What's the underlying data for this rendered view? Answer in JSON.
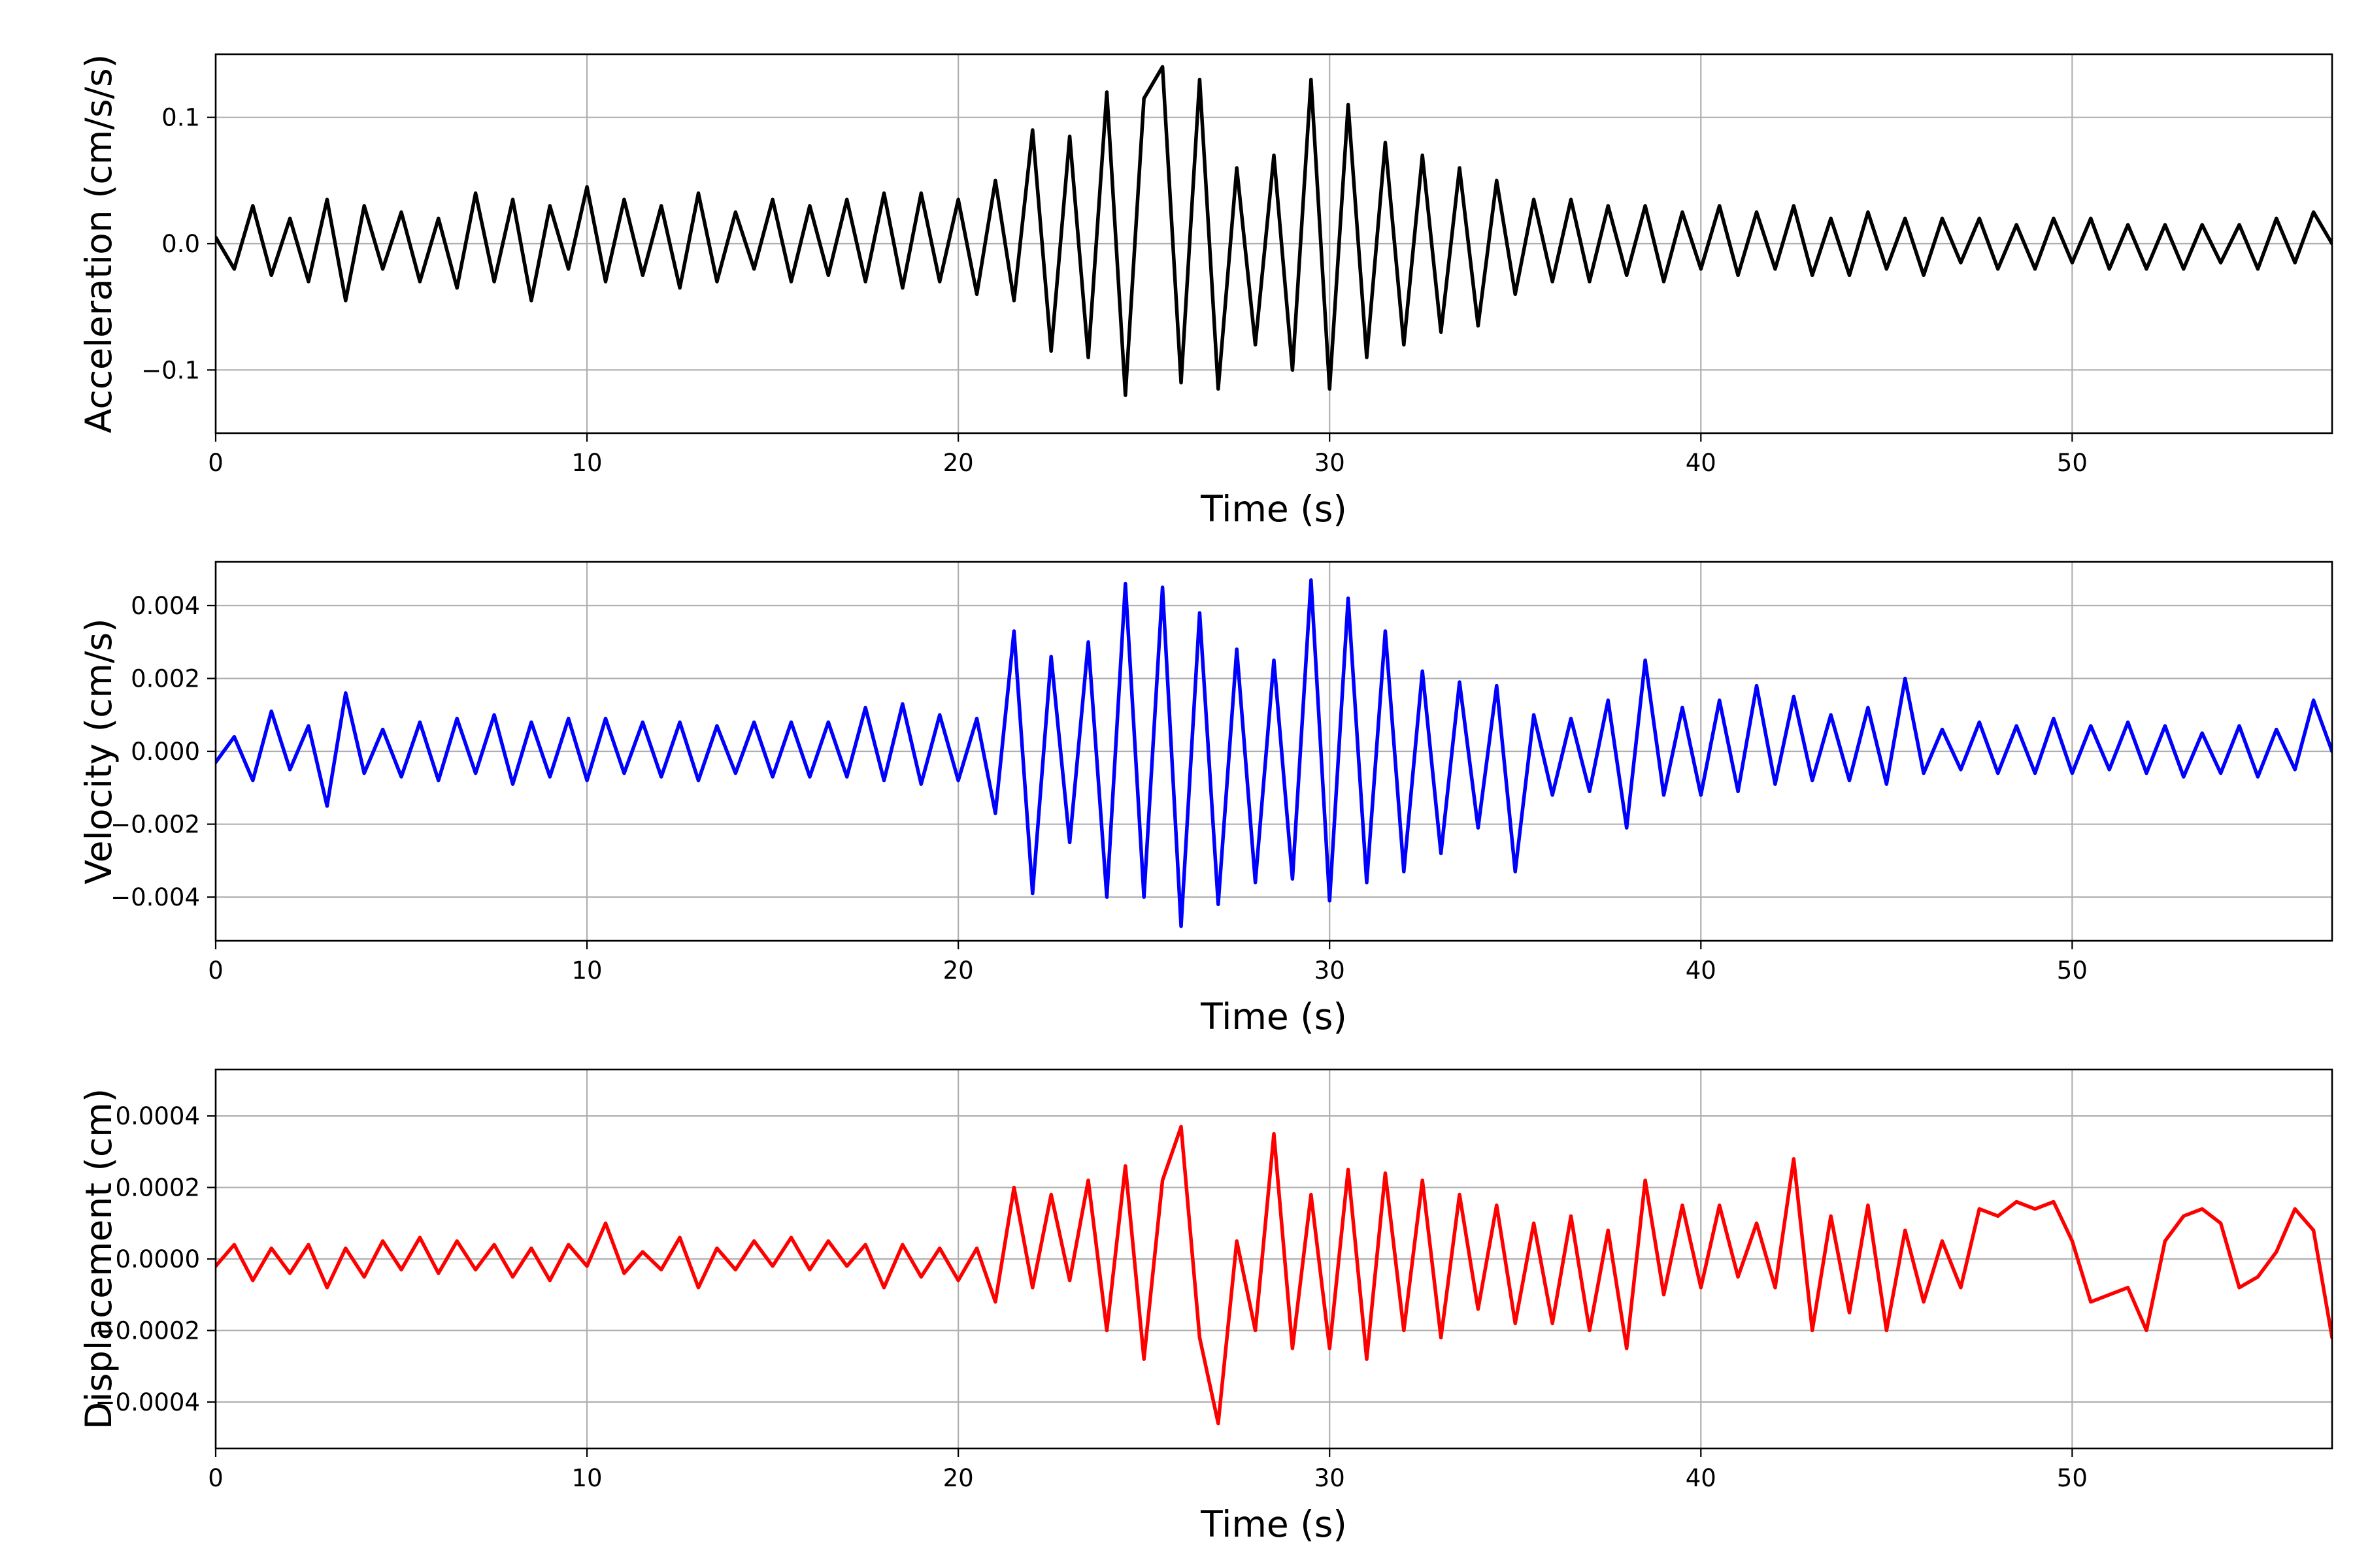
{
  "chart_data": [
    {
      "type": "line",
      "xlabel": "Time (s)",
      "ylabel": "Acceleration (cm/s/s)",
      "xlim": [
        0,
        57
      ],
      "ylim": [
        -0.15,
        0.15
      ],
      "xticks": [
        0,
        10,
        20,
        30,
        40,
        50
      ],
      "yticks": [
        -0.1,
        0.0,
        0.1
      ],
      "yticklabels": [
        "−0.1",
        "0.0",
        "0.1"
      ],
      "grid": true,
      "series": [
        {
          "color": "#000000",
          "x": [
            0,
            0.5,
            1,
            1.5,
            2,
            2.5,
            3,
            3.5,
            4,
            4.5,
            5,
            5.5,
            6,
            6.5,
            7,
            7.5,
            8,
            8.5,
            9,
            9.5,
            10,
            10.5,
            11,
            11.5,
            12,
            12.5,
            13,
            13.5,
            14,
            14.5,
            15,
            15.5,
            16,
            16.5,
            17,
            17.5,
            18,
            18.5,
            19,
            19.5,
            20,
            20.5,
            21,
            21.5,
            22,
            22.5,
            23,
            23.5,
            24,
            24.5,
            25,
            25.5,
            26,
            26.5,
            27,
            27.5,
            28,
            28.5,
            29,
            29.5,
            30,
            30.5,
            31,
            31.5,
            32,
            32.5,
            33,
            33.5,
            34,
            34.5,
            35,
            35.5,
            36,
            36.5,
            37,
            37.5,
            38,
            38.5,
            39,
            39.5,
            40,
            40.5,
            41,
            41.5,
            42,
            42.5,
            43,
            43.5,
            44,
            44.5,
            45,
            45.5,
            46,
            46.5,
            47,
            47.5,
            48,
            48.5,
            49,
            49.5,
            50,
            50.5,
            51,
            51.5,
            52,
            52.5,
            53,
            53.5,
            54,
            54.5,
            55,
            55.5,
            56,
            56.5,
            57
          ],
          "y": [
            0.005,
            -0.02,
            0.03,
            -0.025,
            0.02,
            -0.03,
            0.035,
            -0.045,
            0.03,
            -0.02,
            0.025,
            -0.03,
            0.02,
            -0.035,
            0.04,
            -0.03,
            0.035,
            -0.045,
            0.03,
            -0.02,
            0.045,
            -0.03,
            0.035,
            -0.025,
            0.03,
            -0.035,
            0.04,
            -0.03,
            0.025,
            -0.02,
            0.035,
            -0.03,
            0.03,
            -0.025,
            0.035,
            -0.03,
            0.04,
            -0.035,
            0.04,
            -0.03,
            0.035,
            -0.04,
            0.05,
            -0.045,
            0.09,
            -0.085,
            0.085,
            -0.09,
            0.12,
            -0.12,
            0.115,
            0.14,
            -0.11,
            0.13,
            -0.115,
            0.06,
            -0.08,
            0.07,
            -0.1,
            0.13,
            -0.115,
            0.11,
            -0.09,
            0.08,
            -0.08,
            0.07,
            -0.07,
            0.06,
            -0.065,
            0.05,
            -0.04,
            0.035,
            -0.03,
            0.035,
            -0.03,
            0.03,
            -0.025,
            0.03,
            -0.03,
            0.025,
            -0.02,
            0.03,
            -0.025,
            0.025,
            -0.02,
            0.03,
            -0.025,
            0.02,
            -0.025,
            0.025,
            -0.02,
            0.02,
            -0.025,
            0.02,
            -0.015,
            0.02,
            -0.02,
            0.015,
            -0.02,
            0.02,
            -0.015,
            0.02,
            -0.02,
            0.015,
            -0.02,
            0.015,
            -0.02,
            0.015,
            -0.015,
            0.015,
            -0.02,
            0.02,
            -0.015,
            0.025,
            0.0
          ]
        }
      ]
    },
    {
      "type": "line",
      "xlabel": "Time (s)",
      "ylabel": "Velocity (cm/s)",
      "xlim": [
        0,
        57
      ],
      "ylim": [
        -0.0052,
        0.0052
      ],
      "xticks": [
        0,
        10,
        20,
        30,
        40,
        50
      ],
      "yticks": [
        -0.004,
        -0.002,
        0.0,
        0.002,
        0.004
      ],
      "yticklabels": [
        "−0.004",
        "−0.002",
        "0.000",
        "0.002",
        "0.004"
      ],
      "grid": true,
      "series": [
        {
          "color": "#0000ff",
          "x": [
            0,
            0.5,
            1,
            1.5,
            2,
            2.5,
            3,
            3.5,
            4,
            4.5,
            5,
            5.5,
            6,
            6.5,
            7,
            7.5,
            8,
            8.5,
            9,
            9.5,
            10,
            10.5,
            11,
            11.5,
            12,
            12.5,
            13,
            13.5,
            14,
            14.5,
            15,
            15.5,
            16,
            16.5,
            17,
            17.5,
            18,
            18.5,
            19,
            19.5,
            20,
            20.5,
            21,
            21.5,
            22,
            22.5,
            23,
            23.5,
            24,
            24.5,
            25,
            25.5,
            26,
            26.5,
            27,
            27.5,
            28,
            28.5,
            29,
            29.5,
            30,
            30.5,
            31,
            31.5,
            32,
            32.5,
            33,
            33.5,
            34,
            34.5,
            35,
            35.5,
            36,
            36.5,
            37,
            37.5,
            38,
            38.5,
            39,
            39.5,
            40,
            40.5,
            41,
            41.5,
            42,
            42.5,
            43,
            43.5,
            44,
            44.5,
            45,
            45.5,
            46,
            46.5,
            47,
            47.5,
            48,
            48.5,
            49,
            49.5,
            50,
            50.5,
            51,
            51.5,
            52,
            52.5,
            53,
            53.5,
            54,
            54.5,
            55,
            55.5,
            56,
            56.5,
            57
          ],
          "y": [
            -0.0003,
            0.0004,
            -0.0008,
            0.0011,
            -0.0005,
            0.0007,
            -0.0015,
            0.0016,
            -0.0006,
            0.0006,
            -0.0007,
            0.0008,
            -0.0008,
            0.0009,
            -0.0006,
            0.001,
            -0.0009,
            0.0008,
            -0.0007,
            0.0009,
            -0.0008,
            0.0009,
            -0.0006,
            0.0008,
            -0.0007,
            0.0008,
            -0.0008,
            0.0007,
            -0.0006,
            0.0008,
            -0.0007,
            0.0008,
            -0.0007,
            0.0008,
            -0.0007,
            0.0012,
            -0.0008,
            0.0013,
            -0.0009,
            0.001,
            -0.0008,
            0.0009,
            -0.0017,
            0.0033,
            -0.0039,
            0.0026,
            -0.0025,
            0.003,
            -0.004,
            0.0046,
            -0.004,
            0.0045,
            -0.0048,
            0.0038,
            -0.0042,
            0.0028,
            -0.0036,
            0.0025,
            -0.0035,
            0.0047,
            -0.0041,
            0.0042,
            -0.0036,
            0.0033,
            -0.0033,
            0.0022,
            -0.0028,
            0.0019,
            -0.0021,
            0.0018,
            -0.0033,
            0.001,
            -0.0012,
            0.0009,
            -0.0011,
            0.0014,
            -0.0021,
            0.0025,
            -0.0012,
            0.0012,
            -0.0012,
            0.0014,
            -0.0011,
            0.0018,
            -0.0009,
            0.0015,
            -0.0008,
            0.001,
            -0.0008,
            0.0012,
            -0.0009,
            0.002,
            -0.0006,
            0.0006,
            -0.0005,
            0.0008,
            -0.0006,
            0.0007,
            -0.0006,
            0.0009,
            -0.0006,
            0.0007,
            -0.0005,
            0.0008,
            -0.0006,
            0.0007,
            -0.0007,
            0.0005,
            -0.0006,
            0.0007,
            -0.0007,
            0.0006,
            -0.0005,
            0.0014,
            0.0
          ]
        }
      ]
    },
    {
      "type": "line",
      "xlabel": "Time (s)",
      "ylabel": "Displacement (cm)",
      "xlim": [
        0,
        57
      ],
      "ylim": [
        -0.00053,
        0.00053
      ],
      "xticks": [
        0,
        10,
        20,
        30,
        40,
        50
      ],
      "yticks": [
        -0.0004,
        -0.0002,
        0.0,
        0.0002,
        0.0004
      ],
      "yticklabels": [
        "−0.0004",
        "−0.0002",
        "0.0000",
        "0.0002",
        "0.0004"
      ],
      "grid": true,
      "series": [
        {
          "color": "#ff0000",
          "x": [
            0,
            0.5,
            1,
            1.5,
            2,
            2.5,
            3,
            3.5,
            4,
            4.5,
            5,
            5.5,
            6,
            6.5,
            7,
            7.5,
            8,
            8.5,
            9,
            9.5,
            10,
            10.5,
            11,
            11.5,
            12,
            12.5,
            13,
            13.5,
            14,
            14.5,
            15,
            15.5,
            16,
            16.5,
            17,
            17.5,
            18,
            18.5,
            19,
            19.5,
            20,
            20.5,
            21,
            21.5,
            22,
            22.5,
            23,
            23.5,
            24,
            24.5,
            25,
            25.5,
            26,
            26.5,
            27,
            27.5,
            28,
            28.5,
            29,
            29.5,
            30,
            30.5,
            31,
            31.5,
            32,
            32.5,
            33,
            33.5,
            34,
            34.5,
            35,
            35.5,
            36,
            36.5,
            37,
            37.5,
            38,
            38.5,
            39,
            39.5,
            40,
            40.5,
            41,
            41.5,
            42,
            42.5,
            43,
            43.5,
            44,
            44.5,
            45,
            45.5,
            46,
            46.5,
            47,
            47.5,
            48,
            48.5,
            49,
            49.5,
            50,
            50.5,
            51,
            51.5,
            52,
            52.5,
            53,
            53.5,
            54,
            54.5,
            55,
            55.5,
            56,
            56.5,
            57
          ],
          "y": [
            -2e-05,
            4e-05,
            -6e-05,
            3e-05,
            -4e-05,
            4e-05,
            -8e-05,
            3e-05,
            -5e-05,
            5e-05,
            -3e-05,
            6e-05,
            -4e-05,
            5e-05,
            -3e-05,
            4e-05,
            -5e-05,
            3e-05,
            -6e-05,
            4e-05,
            -2e-05,
            0.0001,
            -4e-05,
            2e-05,
            -3e-05,
            6e-05,
            -8e-05,
            3e-05,
            -3e-05,
            5e-05,
            -2e-05,
            6e-05,
            -3e-05,
            5e-05,
            -2e-05,
            4e-05,
            -8e-05,
            4e-05,
            -5e-05,
            3e-05,
            -6e-05,
            3e-05,
            -0.00012,
            0.0002,
            -8e-05,
            0.00018,
            -6e-05,
            0.00022,
            -0.0002,
            0.00026,
            -0.00028,
            0.00022,
            0.00037,
            -0.00022,
            -0.00046,
            5e-05,
            -0.0002,
            0.00035,
            -0.00025,
            0.00018,
            -0.00025,
            0.00025,
            -0.00028,
            0.00024,
            -0.0002,
            0.00022,
            -0.00022,
            0.00018,
            -0.00014,
            0.00015,
            -0.00018,
            0.0001,
            -0.00018,
            0.00012,
            -0.0002,
            8e-05,
            -0.00025,
            0.00022,
            -0.0001,
            0.00015,
            -8e-05,
            0.00015,
            -5e-05,
            0.0001,
            -8e-05,
            0.00028,
            -0.0002,
            0.00012,
            -0.00015,
            0.00015,
            -0.0002,
            8e-05,
            -0.00012,
            5e-05,
            -8e-05,
            0.00014,
            0.00012,
            0.00016,
            0.00014,
            0.00016,
            5e-05,
            -0.00012,
            -0.0001,
            -8e-05,
            -0.0002,
            5e-05,
            0.00012,
            0.00014,
            0.0001,
            -8e-05,
            -5e-05,
            2e-05,
            0.00014,
            8e-05,
            -0.00022
          ]
        }
      ]
    }
  ]
}
